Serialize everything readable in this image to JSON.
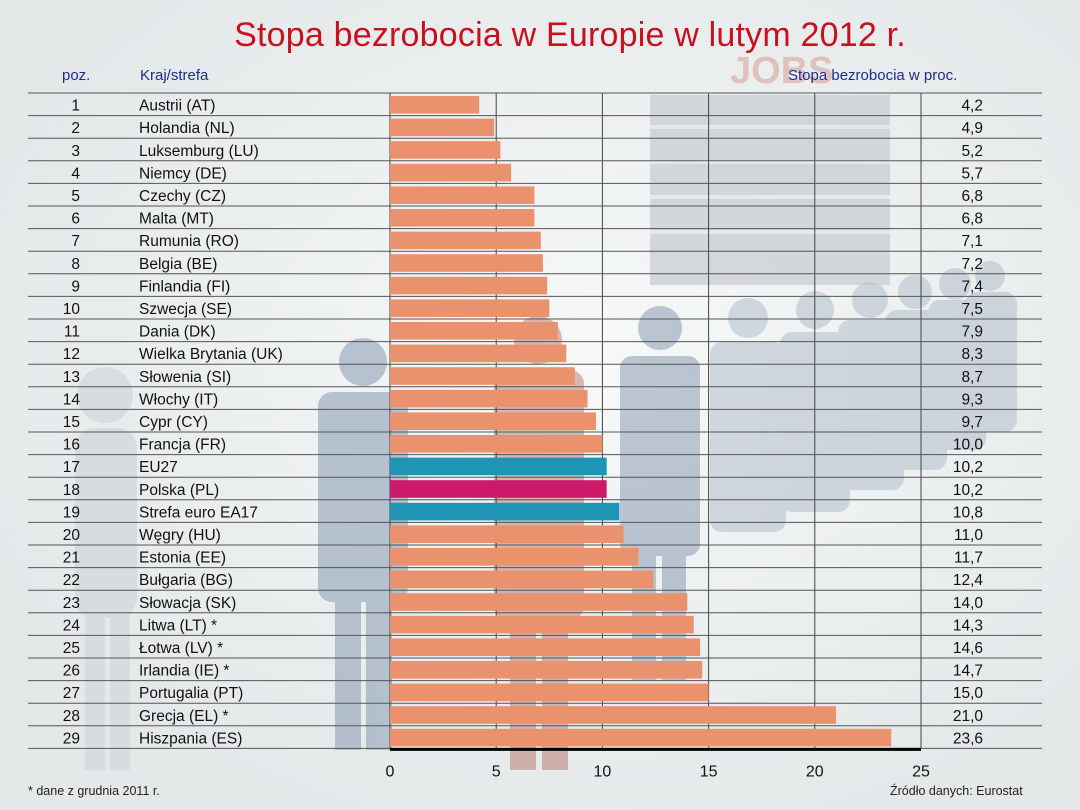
{
  "title": "Stopa bezrobocia w Europie w lutym 2012 r.",
  "headers": {
    "rank": "poz.",
    "country": "Kraj/strefa",
    "value": "Stopa bezrobocia w proc."
  },
  "watermark": "JOBS",
  "footnote": "* dane z grudnia 2011 r.",
  "source": "Źródło danych: Eurostat",
  "colors": {
    "default_bar": "#e9926d",
    "eu_bar": "#1f95b6",
    "poland_bar": "#cc1a6a",
    "title": "#c8101e",
    "header": "#1f2c8a"
  },
  "chart_data": {
    "type": "bar",
    "orientation": "horizontal",
    "title": "Stopa bezrobocia w Europie w lutym 2012 r.",
    "xlabel": "Stopa bezrobocia w proc.",
    "xlim": [
      0,
      25
    ],
    "xticks": [
      0,
      5,
      10,
      15,
      20,
      25
    ],
    "rows": [
      {
        "rank": "1",
        "country": "Austrii (AT)",
        "value": 4.2,
        "label": "4,2",
        "kind": "default"
      },
      {
        "rank": "2",
        "country": "Holandia (NL)",
        "value": 4.9,
        "label": "4,9",
        "kind": "default"
      },
      {
        "rank": "3",
        "country": "Luksemburg (LU)",
        "value": 5.2,
        "label": "5,2",
        "kind": "default"
      },
      {
        "rank": "4",
        "country": "Niemcy (DE)",
        "value": 5.7,
        "label": "5,7",
        "kind": "default"
      },
      {
        "rank": "5",
        "country": "Czechy (CZ)",
        "value": 6.8,
        "label": "6,8",
        "kind": "default"
      },
      {
        "rank": "6",
        "country": "Malta (MT)",
        "value": 6.8,
        "label": "6,8",
        "kind": "default"
      },
      {
        "rank": "7",
        "country": "Rumunia (RO)",
        "value": 7.1,
        "label": "7,1",
        "kind": "default"
      },
      {
        "rank": "8",
        "country": "Belgia (BE)",
        "value": 7.2,
        "label": "7,2",
        "kind": "default"
      },
      {
        "rank": "9",
        "country": "Finlandia (FI)",
        "value": 7.4,
        "label": "7,4",
        "kind": "default"
      },
      {
        "rank": "10",
        "country": "Szwecja (SE)",
        "value": 7.5,
        "label": "7,5",
        "kind": "default"
      },
      {
        "rank": "11",
        "country": "Dania (DK)",
        "value": 7.9,
        "label": "7,9",
        "kind": "default"
      },
      {
        "rank": "12",
        "country": "Wielka Brytania (UK)",
        "value": 8.3,
        "label": "8,3",
        "kind": "default"
      },
      {
        "rank": "13",
        "country": "Słowenia (SI)",
        "value": 8.7,
        "label": "8,7",
        "kind": "default"
      },
      {
        "rank": "14",
        "country": "Włochy (IT)",
        "value": 9.3,
        "label": "9,3",
        "kind": "default"
      },
      {
        "rank": "15",
        "country": "Cypr (CY)",
        "value": 9.7,
        "label": "9,7",
        "kind": "default"
      },
      {
        "rank": "16",
        "country": "Francja (FR)",
        "value": 10.0,
        "label": "10,0",
        "kind": "default"
      },
      {
        "rank": "17",
        "country": "EU27",
        "value": 10.2,
        "label": "10,2",
        "kind": "eu"
      },
      {
        "rank": "18",
        "country": "Polska (PL)",
        "value": 10.2,
        "label": "10,2",
        "kind": "poland"
      },
      {
        "rank": "19",
        "country": "Strefa euro EA17",
        "value": 10.8,
        "label": "10,8",
        "kind": "eu"
      },
      {
        "rank": "20",
        "country": "Węgry (HU)",
        "value": 11.0,
        "label": "11,0",
        "kind": "default"
      },
      {
        "rank": "21",
        "country": "Estonia (EE)",
        "value": 11.7,
        "label": "11,7",
        "kind": "default"
      },
      {
        "rank": "22",
        "country": "Bułgaria (BG)",
        "value": 12.4,
        "label": "12,4",
        "kind": "default"
      },
      {
        "rank": "23",
        "country": "Słowacja (SK)",
        "value": 14.0,
        "label": "14,0",
        "kind": "default"
      },
      {
        "rank": "24",
        "country": "Litwa (LT) *",
        "value": 14.3,
        "label": "14,3",
        "kind": "default"
      },
      {
        "rank": "25",
        "country": "Łotwa (LV) *",
        "value": 14.6,
        "label": "14,6",
        "kind": "default"
      },
      {
        "rank": "26",
        "country": "Irlandia (IE) *",
        "value": 14.7,
        "label": "14,7",
        "kind": "default"
      },
      {
        "rank": "27",
        "country": "Portugalia (PT)",
        "value": 15.0,
        "label": "15,0",
        "kind": "default"
      },
      {
        "rank": "28",
        "country": "Grecja (EL) *",
        "value": 21.0,
        "label": "21,0",
        "kind": "default"
      },
      {
        "rank": "29",
        "country": "Hiszpania (ES)",
        "value": 23.6,
        "label": "23,6",
        "kind": "default"
      }
    ]
  }
}
